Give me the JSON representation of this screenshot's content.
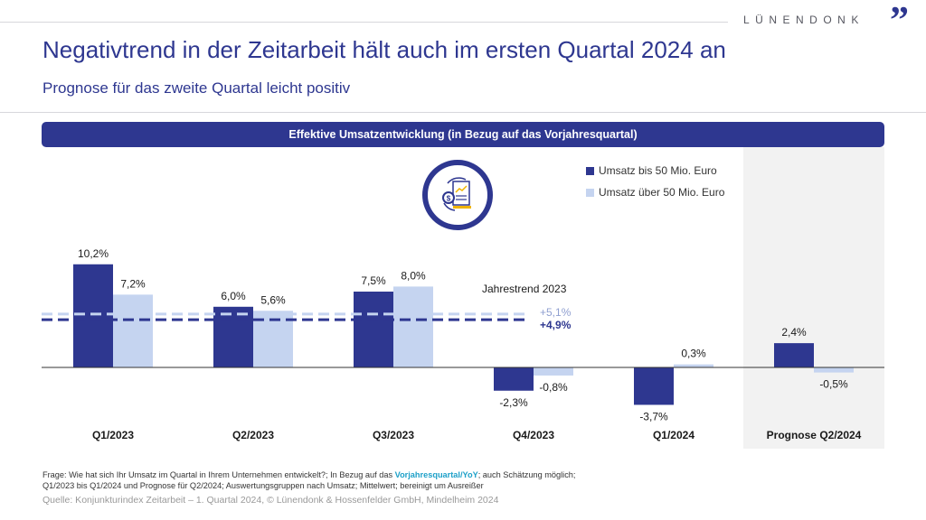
{
  "brand": {
    "name": "LÜNENDONK",
    "mark": "”"
  },
  "header": {
    "title": "Negativtrend in der Zeitarbeit hält auch im ersten Quartal 2024 an",
    "subtitle": "Prognose für das zweite Quartal leicht positiv"
  },
  "banner": {
    "label": "Effektive Umsatzentwicklung (in Bezug auf das Vorjahresquartal)"
  },
  "icon": {
    "name": "revenue-report-icon"
  },
  "colors": {
    "dark": "#2e3790",
    "light": "#c5d4f0",
    "forecast_bg": "#f2f2f2",
    "highlight": "#1ea0c8"
  },
  "chart_data": {
    "type": "bar",
    "title": "Effektive Umsatzentwicklung (in Bezug auf das Vorjahresquartal)",
    "xlabel": "",
    "ylabel": "",
    "unit": "%",
    "ylim": [
      -5,
      12
    ],
    "grid": false,
    "legend_position": "top-right",
    "categories": [
      "Q1/2023",
      "Q2/2023",
      "Q3/2023",
      "Q4/2023",
      "Q1/2024",
      "Prognose Q2/2024"
    ],
    "forecast_category": "Prognose Q2/2024",
    "series": [
      {
        "name": "Umsatz bis 50 Mio. Euro",
        "color": "#2e3790",
        "values": [
          10.2,
          6.0,
          7.5,
          -2.3,
          -3.7,
          2.4
        ],
        "labels": [
          "10,2%",
          "6,0%",
          "7,5%",
          "-2,3%",
          "-3,7%",
          "2,4%"
        ]
      },
      {
        "name": "Umsatz über 50 Mio. Euro",
        "color": "#c5d4f0",
        "values": [
          7.2,
          5.6,
          8.0,
          -0.8,
          0.3,
          -0.5
        ],
        "labels": [
          "7,2%",
          "5,6%",
          "8,0%",
          "-0,8%",
          "0,3%",
          "-0,5%"
        ]
      }
    ],
    "trend_lines": {
      "title": "Jahrestrend 2023",
      "lines": [
        {
          "series": "Umsatz über 50 Mio. Euro",
          "value": 5.1,
          "label": "+5,1%",
          "color": "#c5d4f0",
          "text_color": "#8f9fd0"
        },
        {
          "series": "Umsatz bis 50 Mio. Euro",
          "value": 4.9,
          "label": "+4,9%",
          "color": "#2e3790",
          "text_color": "#2e3790"
        }
      ]
    }
  },
  "footer": {
    "question_prefix": "Frage: Wie hat sich Ihr Umsatz im Quartal in Ihrem Unternehmen entwickelt?; In Bezug auf das ",
    "question_highlight": "Vorjahresquartal/YoY",
    "question_suffix": "; auch Schätzung möglich;",
    "question_line2": "Q1/2023 bis Q1/2024 und Prognose für Q2/2024; Auswertungsgruppen nach Umsatz; Mittelwert; bereinigt um Ausreißer",
    "source": "Quelle: Konjunkturindex Zeitarbeit – 1. Quartal 2024,  © Lünendonk & Hossenfelder GmbH, Mindelheim 2024"
  }
}
